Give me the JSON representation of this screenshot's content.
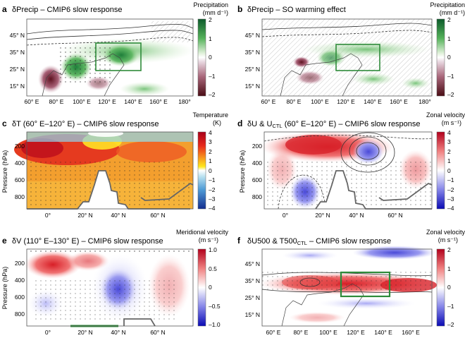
{
  "chart_data": [
    {
      "panel": "a",
      "type": "heatmap",
      "title": "δPrecip – CMIP6 slow response",
      "x_ticks": [
        "60° E",
        "80° E",
        "100° E",
        "120° E",
        "140° E",
        "160° E",
        "180°"
      ],
      "y_ticks": [
        "45° N",
        "35° N",
        "25° N",
        "15° N"
      ],
      "colorbar": {
        "label": "Precipitation",
        "unit": "(mm d⁻¹)",
        "ticks": [
          "2",
          "1",
          "0",
          "–1",
          "–2"
        ],
        "range": [
          -2,
          2
        ],
        "colormap": "brown-white-green"
      },
      "features": [
        {
          "kind": "wet",
          "lon": 103,
          "lat": 28,
          "value": 2.0
        },
        {
          "kind": "wet",
          "lon": 132,
          "lat": 33,
          "value": 1.0
        },
        {
          "kind": "dry",
          "lon": 80,
          "lat": 22,
          "value": -1.5
        }
      ],
      "box": {
        "lon": [
          112,
          142
        ],
        "lat": [
          24,
          38
        ]
      }
    },
    {
      "panel": "b",
      "type": "heatmap",
      "title": "δPrecip – SO warming effect",
      "x_ticks": [
        "60° E",
        "80° E",
        "100° E",
        "120° E",
        "140° E",
        "160° E",
        "180°"
      ],
      "y_ticks": [
        "45° N",
        "35° N",
        "25° N",
        "15° N"
      ],
      "colorbar": {
        "label": "Precipitation",
        "unit": "(mm d⁻¹)",
        "ticks": [
          "2",
          "1",
          "0",
          "–1",
          "–2"
        ],
        "range": [
          -2,
          2
        ],
        "colormap": "brown-white-green"
      },
      "features": [
        {
          "kind": "dry",
          "lon": 87,
          "lat": 28,
          "value": -1.8
        },
        {
          "kind": "wet",
          "lon": 115,
          "lat": 30,
          "value": 0.8
        }
      ],
      "box": {
        "lon": [
          112,
          142
        ],
        "lat": [
          24,
          38
        ]
      }
    },
    {
      "panel": "c",
      "type": "heatmap",
      "title": "δT (60° E–120° E) – CMIP6 slow response",
      "ylabel": "Pressure (hPa)",
      "x_ticks": [
        "0°",
        "20° N",
        "40° N",
        "60° N"
      ],
      "y_ticks": [
        "200",
        "400",
        "600",
        "800"
      ],
      "colorbar": {
        "label": "Temperature",
        "unit": "(K)",
        "ticks": [
          "4",
          "3",
          "2",
          "1",
          "0",
          "–1",
          "–2",
          "–3",
          "–4"
        ],
        "range": [
          -4,
          4
        ],
        "colormap": "blue-white-red"
      },
      "features": [
        {
          "kind": "warm-max",
          "lat": 10,
          "p": 250,
          "value": 4
        },
        {
          "kind": "cool",
          "lat": 30,
          "p": 120,
          "value": -1
        }
      ]
    },
    {
      "panel": "d",
      "type": "heatmap",
      "title": "δU & U",
      "title_sub": "CTL",
      "title_tail": " (60° E–120° E) – CMIP6 slow response",
      "ylabel": "Pressure (hPa)",
      "x_ticks": [
        "0°",
        "20° N",
        "40° N",
        "60° N"
      ],
      "y_ticks": [
        "200",
        "400",
        "600",
        "800"
      ],
      "colorbar": {
        "label": "Zonal velocity",
        "unit": "(m s⁻¹)",
        "ticks": [
          "4",
          "3",
          "2",
          "1",
          "0",
          "–1",
          "–2",
          "–3",
          "–4"
        ],
        "range": [
          -4,
          4
        ],
        "colormap": "blue-white-red"
      },
      "features": [
        {
          "kind": "positive",
          "lat": 25,
          "p": 250,
          "value": 3.5
        },
        {
          "kind": "negative",
          "lat": 42,
          "p": 250,
          "value": -2
        },
        {
          "kind": "negative",
          "lat": 10,
          "p": 800,
          "value": -2
        }
      ]
    },
    {
      "panel": "e",
      "type": "heatmap",
      "title": "δV (110° E–130° E) – CMIP6 slow response",
      "ylabel": "Pressure (hPa)",
      "x_ticks": [
        "0°",
        "20° N",
        "40° N",
        "60° N"
      ],
      "y_ticks": [
        "200",
        "400",
        "600",
        "800"
      ],
      "colorbar": {
        "label": "Meridional velocity",
        "unit": "(m s⁻¹)",
        "ticks": [
          "1.0",
          "0.5",
          "0",
          "–0.5",
          "–1.0"
        ],
        "range": [
          -1,
          1
        ],
        "colormap": "blue-white-red"
      },
      "features": [
        {
          "kind": "positive",
          "lat": 15,
          "p": 350,
          "value": 0.6
        },
        {
          "kind": "negative",
          "lat": 38,
          "p": 600,
          "value": -0.9
        }
      ]
    },
    {
      "panel": "f",
      "type": "heatmap",
      "title": "δU500 & T500",
      "title_sub": "CTL",
      "title_tail": " – CMIP6 slow response",
      "x_ticks": [
        "60° E",
        "80° E",
        "100° E",
        "120° E",
        "140° E",
        "160° E"
      ],
      "y_ticks": [
        "45° N",
        "35° N",
        "25° N",
        "15° N"
      ],
      "colorbar": {
        "label": "Zonal velocity",
        "unit": "(m s⁻¹)",
        "ticks": [
          "2",
          "1",
          "0",
          "–1",
          "–2"
        ],
        "range": [
          -2,
          2
        ],
        "colormap": "blue-white-red"
      },
      "features": [
        {
          "kind": "positive-band",
          "lat": 33,
          "value": 1.5
        },
        {
          "kind": "negative-band",
          "lat": 47,
          "value": -1.5
        }
      ],
      "box": {
        "lon": [
          113,
          140
        ],
        "lat": [
          26,
          40
        ]
      }
    }
  ]
}
